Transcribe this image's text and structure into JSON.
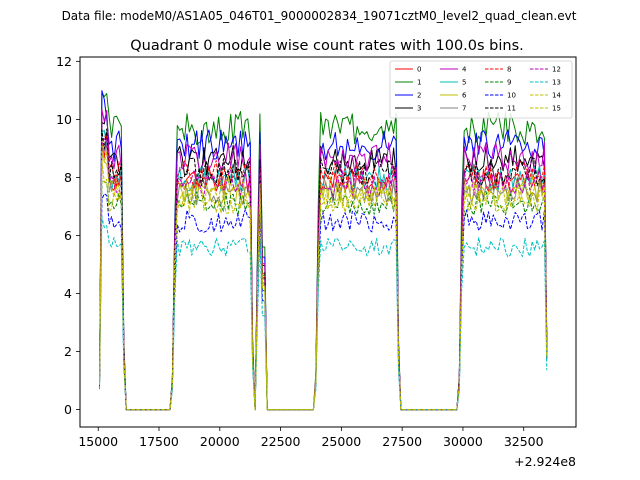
{
  "chart_data": {
    "type": "line",
    "suptitle": "Data file: modeM0/AS1A05_046T01_9000002834_19071cztM0_level2_quad_clean.evt",
    "title": "Quadrant 0 module wise count rates with 100.0s bins.",
    "xlabel": "",
    "ylabel": "",
    "x_offset_label": "+2.924e8",
    "xlim": [
      14250,
      34650
    ],
    "ylim": [
      -0.6,
      12.15
    ],
    "x_ticks": [
      15000,
      17500,
      20000,
      22500,
      25000,
      27500,
      30000,
      32500
    ],
    "y_ticks": [
      0,
      2,
      4,
      6,
      8,
      10,
      12
    ],
    "legend_position": "top-right",
    "segments": [
      [
        15050,
        16050
      ],
      [
        18050,
        21350
      ],
      [
        21550,
        21850
      ],
      [
        23950,
        27350
      ],
      [
        29850,
        33450
      ]
    ],
    "series": [
      {
        "name": "0",
        "color": "#ff0000",
        "dash": "solid",
        "level": 7.9
      },
      {
        "name": "1",
        "color": "#008000",
        "dash": "solid",
        "level": 9.7
      },
      {
        "name": "2",
        "color": "#0000ff",
        "dash": "solid",
        "level": 9.1
      },
      {
        "name": "3",
        "color": "#000000",
        "dash": "solid",
        "level": 8.6
      },
      {
        "name": "4",
        "color": "#bf00bf",
        "dash": "solid",
        "level": 8.7
      },
      {
        "name": "5",
        "color": "#00bfbf",
        "dash": "solid",
        "level": 8.0
      },
      {
        "name": "6",
        "color": "#bfbf00",
        "dash": "solid",
        "level": 7.6
      },
      {
        "name": "7",
        "color": "#808080",
        "dash": "solid",
        "level": 7.5
      },
      {
        "name": "8",
        "color": "#ff0000",
        "dash": "dashed",
        "level": 8.1
      },
      {
        "name": "9",
        "color": "#008000",
        "dash": "dashed",
        "level": 7.1
      },
      {
        "name": "10",
        "color": "#0000ff",
        "dash": "dashed",
        "level": 6.5
      },
      {
        "name": "11",
        "color": "#000000",
        "dash": "dashed",
        "level": 8.2
      },
      {
        "name": "12",
        "color": "#bf00bf",
        "dash": "dashed",
        "level": 7.8
      },
      {
        "name": "13",
        "color": "#00bfbf",
        "dash": "dashed",
        "level": 5.6
      },
      {
        "name": "14",
        "color": "#bfbf00",
        "dash": "dashed",
        "level": 7.2
      },
      {
        "name": "15",
        "color": "#bfbf00",
        "dash": "dashed",
        "level": 7.4
      }
    ]
  }
}
